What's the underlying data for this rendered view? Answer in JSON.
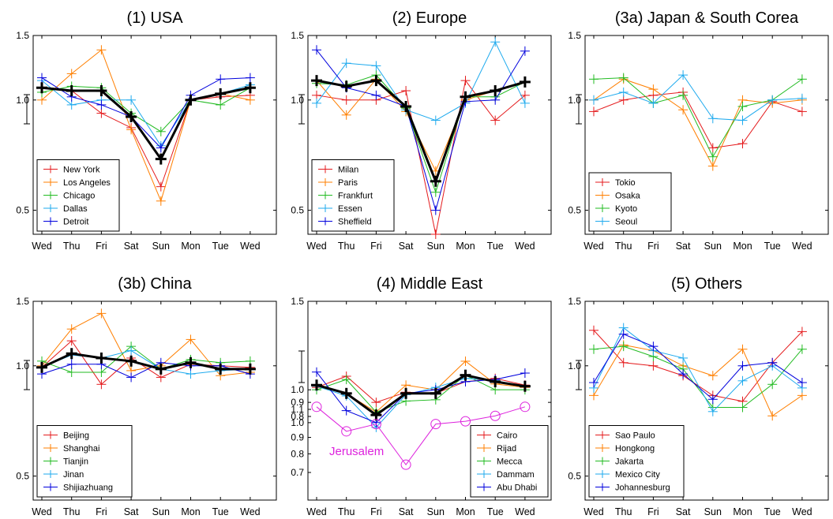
{
  "days": [
    "Wed",
    "Thu",
    "Fri",
    "Sat",
    "Sun",
    "Mon",
    "Tue",
    "Wed"
  ],
  "y_ticks": [
    "1.5",
    "1.0",
    "0.5"
  ],
  "chart_data": [
    {
      "type": "line",
      "title": "(1) USA",
      "y_scale": "log",
      "ylim": [
        0.43,
        1.5
      ],
      "average_color": "#000000",
      "series": [
        {
          "name": "New York",
          "color": "#e41a1c",
          "values": [
            1.08,
            1.06,
            0.92,
            0.84,
            0.58,
            1.0,
            1.02,
            1.03
          ]
        },
        {
          "name": "Los Angeles",
          "color": "#ff7f00",
          "values": [
            1.0,
            1.18,
            1.37,
            0.83,
            0.53,
            1.0,
            1.04,
            1.0
          ]
        },
        {
          "name": "Chicago",
          "color": "#22bb22",
          "values": [
            1.05,
            1.09,
            1.08,
            0.92,
            0.82,
            1.0,
            0.97,
            1.08
          ]
        },
        {
          "name": "Dallas",
          "color": "#1eaaee",
          "values": [
            1.13,
            0.97,
            1.0,
            1.0,
            0.75,
            1.0,
            1.04,
            1.1
          ]
        },
        {
          "name": "Detroit",
          "color": "#0000dd",
          "values": [
            1.15,
            1.02,
            0.97,
            0.9,
            0.74,
            1.03,
            1.14,
            1.15
          ]
        }
      ],
      "average": [
        1.08,
        1.06,
        1.06,
        0.9,
        0.69,
        1.0,
        1.04,
        1.08
      ],
      "legend_position": "bottom-left"
    },
    {
      "type": "line",
      "title": "(2) Europe",
      "y_scale": "log",
      "ylim": [
        0.43,
        1.5
      ],
      "average_color": "#000000",
      "series": [
        {
          "name": "Milan",
          "color": "#e41a1c",
          "values": [
            1.03,
            1.0,
            1.0,
            1.06,
            0.42,
            1.13,
            0.88,
            1.03
          ]
        },
        {
          "name": "Paris",
          "color": "#ff7f00",
          "values": [
            1.13,
            0.91,
            1.14,
            0.93,
            0.64,
            1.0,
            1.06,
            1.12
          ]
        },
        {
          "name": "Frankfurt",
          "color": "#22bb22",
          "values": [
            1.11,
            1.1,
            1.17,
            0.95,
            0.56,
            1.02,
            1.02,
            1.12
          ]
        },
        {
          "name": "Essen",
          "color": "#1eaaee",
          "values": [
            0.98,
            1.26,
            1.24,
            0.94,
            0.88,
            0.98,
            1.44,
            0.98
          ]
        },
        {
          "name": "Sheffield",
          "color": "#0000dd",
          "values": [
            1.37,
            1.08,
            1.03,
            0.96,
            0.5,
            0.99,
            1.0,
            1.36
          ]
        }
      ],
      "average": [
        1.13,
        1.09,
        1.13,
        0.96,
        0.6,
        1.02,
        1.06,
        1.12
      ],
      "legend_position": "bottom-left"
    },
    {
      "type": "line",
      "title": "(3a) Japan & South Corea",
      "y_scale": "log",
      "ylim": [
        0.43,
        1.5
      ],
      "series": [
        {
          "name": "Tokio",
          "color": "#e41a1c",
          "values": [
            0.93,
            1.0,
            1.03,
            1.05,
            0.74,
            0.76,
            0.99,
            0.93
          ]
        },
        {
          "name": "Osaka",
          "color": "#ff7f00",
          "values": [
            1.0,
            1.14,
            1.07,
            0.94,
            0.66,
            1.0,
            0.98,
            1.0
          ]
        },
        {
          "name": "Kyoto",
          "color": "#22bb22",
          "values": [
            1.14,
            1.15,
            0.98,
            1.03,
            0.7,
            0.96,
            1.0,
            1.14
          ]
        },
        {
          "name": "Seoul",
          "color": "#1eaaee",
          "values": [
            1.0,
            1.05,
            0.98,
            1.17,
            0.89,
            0.88,
            1.0,
            1.01
          ]
        }
      ],
      "legend_position": "bottom-left"
    },
    {
      "type": "line",
      "title": "(3b) China",
      "y_scale": "log",
      "ylim": [
        0.43,
        1.5
      ],
      "average_color": "#000000",
      "series": [
        {
          "name": "Beijing",
          "color": "#e41a1c",
          "values": [
            0.99,
            1.17,
            0.89,
            1.05,
            0.93,
            1.01,
            1.0,
            0.99
          ]
        },
        {
          "name": "Shanghai",
          "color": "#ff7f00",
          "values": [
            1.0,
            1.26,
            1.39,
            0.97,
            1.0,
            1.18,
            0.94,
            0.96
          ]
        },
        {
          "name": "Tianjin",
          "color": "#22bb22",
          "values": [
            1.03,
            0.96,
            0.96,
            1.13,
            0.98,
            1.04,
            1.02,
            1.03
          ]
        },
        {
          "name": "Jinan",
          "color": "#1eaaee",
          "values": [
            0.99,
            1.07,
            1.05,
            1.1,
            0.98,
            0.95,
            0.97,
            0.98
          ]
        },
        {
          "name": "Shijiazhuang",
          "color": "#0000dd",
          "values": [
            0.95,
            1.01,
            1.01,
            0.93,
            1.02,
            1.0,
            1.0,
            0.95
          ]
        }
      ],
      "average": [
        0.99,
        1.08,
        1.05,
        1.03,
        0.98,
        1.02,
        0.98,
        0.98
      ],
      "legend_position": "bottom-left"
    },
    {
      "type": "line",
      "title": "(4) Middle East",
      "y_scale": "log",
      "ylim": [
        0.43,
        1.5
      ],
      "average_color": "#000000",
      "series": [
        {
          "name": "Cairo",
          "color": "#e41a1c",
          "values": [
            1.02,
            1.12,
            0.9,
            0.98,
            0.97,
            1.07,
            1.1,
            1.04
          ]
        },
        {
          "name": "Rijad",
          "color": "#ff7f00",
          "values": [
            1.03,
            0.97,
            0.83,
            1.04,
            1.0,
            1.27,
            1.05,
            1.02
          ]
        },
        {
          "name": "Mecca",
          "color": "#22bb22",
          "values": [
            1.0,
            1.09,
            0.83,
            0.91,
            0.92,
            1.13,
            1.0,
            1.0
          ]
        },
        {
          "name": "Dammam",
          "color": "#1eaaee",
          "values": [
            1.03,
            0.95,
            0.73,
            0.96,
            1.02,
            1.1,
            1.08,
            1.03
          ]
        },
        {
          "name": "Abu Dhabi",
          "color": "#0000dd",
          "values": [
            1.16,
            0.84,
            0.76,
            0.97,
            1.0,
            1.07,
            1.09,
            1.15
          ]
        }
      ],
      "average": [
        1.04,
        0.97,
        0.81,
        0.97,
        0.97,
        1.13,
        1.07,
        1.03
      ],
      "legend_position": "bottom-right",
      "inset": {
        "label": "Jerusalem",
        "color": "#dd22dd",
        "marker": "circle",
        "y_ticks": [
          "1.1",
          "1.0",
          "0.9",
          "0.8",
          "0.7"
        ],
        "upper_y_ticks": [
          "1.5",
          "1.0",
          "0.9",
          "0.8"
        ],
        "values": [
          1.12,
          0.94,
          0.99,
          0.74,
          0.99,
          1.01,
          1.05,
          1.12
        ]
      }
    },
    {
      "type": "line",
      "title": "(5) Others",
      "y_scale": "log",
      "ylim": [
        0.43,
        1.5
      ],
      "series": [
        {
          "name": "Sao Paulo",
          "color": "#e41a1c",
          "values": [
            1.25,
            1.02,
            1.0,
            0.94,
            0.83,
            0.8,
            1.02,
            1.24
          ]
        },
        {
          "name": "Hongkong",
          "color": "#ff7f00",
          "values": [
            0.83,
            1.14,
            1.1,
            1.0,
            0.94,
            1.11,
            0.73,
            0.83
          ]
        },
        {
          "name": "Jakarta",
          "color": "#22bb22",
          "values": [
            1.11,
            1.13,
            1.06,
            0.98,
            0.77,
            0.77,
            0.89,
            1.11
          ]
        },
        {
          "name": "Mexico City",
          "color": "#1eaaee",
          "values": [
            0.87,
            1.27,
            1.1,
            1.05,
            0.75,
            0.91,
            1.0,
            0.87
          ]
        },
        {
          "name": "Johannesburg",
          "color": "#0000dd",
          "values": [
            0.9,
            1.22,
            1.13,
            0.95,
            0.81,
            1.0,
            1.02,
            0.9
          ]
        }
      ],
      "legend_position": "bottom-left"
    }
  ]
}
